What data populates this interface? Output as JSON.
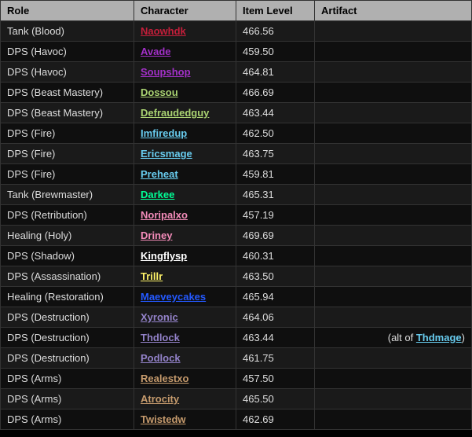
{
  "columns": {
    "role": "Role",
    "character": "Character",
    "item_level": "Item Level",
    "artifact": "Artifact"
  },
  "artifact_alt_prefix": "(alt of ",
  "artifact_alt_suffix": ")",
  "class_colors": {
    "death_knight": "#c41e3a",
    "demon_hunter": "#a330c9",
    "hunter": "#aad372",
    "mage": "#68ccef",
    "monk": "#00ff96",
    "paladin": "#f48cba",
    "priest": "#ffffff",
    "rogue": "#fff468",
    "shaman": "#2459ff",
    "warlock": "#9382c9",
    "warrior": "#c69b6d"
  },
  "rows": [
    {
      "role": "Tank (Blood)",
      "character": "Naowhdk",
      "item_level": "466.56",
      "color": "death_knight",
      "artifact_alt": null
    },
    {
      "role": "DPS (Havoc)",
      "character": "Avade",
      "item_level": "459.50",
      "color": "demon_hunter",
      "artifact_alt": null
    },
    {
      "role": "DPS (Havoc)",
      "character": "Soupshop",
      "item_level": "464.81",
      "color": "demon_hunter",
      "artifact_alt": null
    },
    {
      "role": "DPS (Beast Mastery)",
      "character": "Dossou",
      "item_level": "466.69",
      "color": "hunter",
      "artifact_alt": null
    },
    {
      "role": "DPS (Beast Mastery)",
      "character": "Defraudedguy",
      "item_level": "463.44",
      "color": "hunter",
      "artifact_alt": null
    },
    {
      "role": "DPS (Fire)",
      "character": "Imfiredup",
      "item_level": "462.50",
      "color": "mage",
      "artifact_alt": null
    },
    {
      "role": "DPS (Fire)",
      "character": "Ericsmage",
      "item_level": "463.75",
      "color": "mage",
      "artifact_alt": null
    },
    {
      "role": "DPS (Fire)",
      "character": "Preheat",
      "item_level": "459.81",
      "color": "mage",
      "artifact_alt": null
    },
    {
      "role": "Tank (Brewmaster)",
      "character": "Darkee",
      "item_level": "465.31",
      "color": "monk",
      "artifact_alt": null
    },
    {
      "role": "DPS (Retribution)",
      "character": "Noripalxo",
      "item_level": "457.19",
      "color": "paladin",
      "artifact_alt": null
    },
    {
      "role": "Healing (Holy)",
      "character": "Driney",
      "item_level": "469.69",
      "color": "paladin",
      "artifact_alt": null
    },
    {
      "role": "DPS (Shadow)",
      "character": "Kingflysp",
      "item_level": "460.31",
      "color": "priest",
      "artifact_alt": null
    },
    {
      "role": "DPS (Assassination)",
      "character": "Trillr",
      "item_level": "463.50",
      "color": "rogue",
      "artifact_alt": null
    },
    {
      "role": "Healing (Restoration)",
      "character": "Maeveycakes",
      "item_level": "465.94",
      "color": "shaman",
      "artifact_alt": null
    },
    {
      "role": "DPS (Destruction)",
      "character": "Xyronic",
      "item_level": "464.06",
      "color": "warlock",
      "artifact_alt": null
    },
    {
      "role": "DPS (Destruction)",
      "character": "Thdlock",
      "item_level": "463.44",
      "color": "warlock",
      "artifact_alt": {
        "name": "Thdmage",
        "color": "mage"
      }
    },
    {
      "role": "DPS (Destruction)",
      "character": "Podlock",
      "item_level": "461.75",
      "color": "warlock",
      "artifact_alt": null
    },
    {
      "role": "DPS (Arms)",
      "character": "Realestxo",
      "item_level": "457.50",
      "color": "warrior",
      "artifact_alt": null
    },
    {
      "role": "DPS (Arms)",
      "character": "Atrocity",
      "item_level": "465.50",
      "color": "warrior",
      "artifact_alt": null
    },
    {
      "role": "DPS (Arms)",
      "character": "Twistedw",
      "item_level": "462.69",
      "color": "warrior",
      "artifact_alt": null
    }
  ]
}
